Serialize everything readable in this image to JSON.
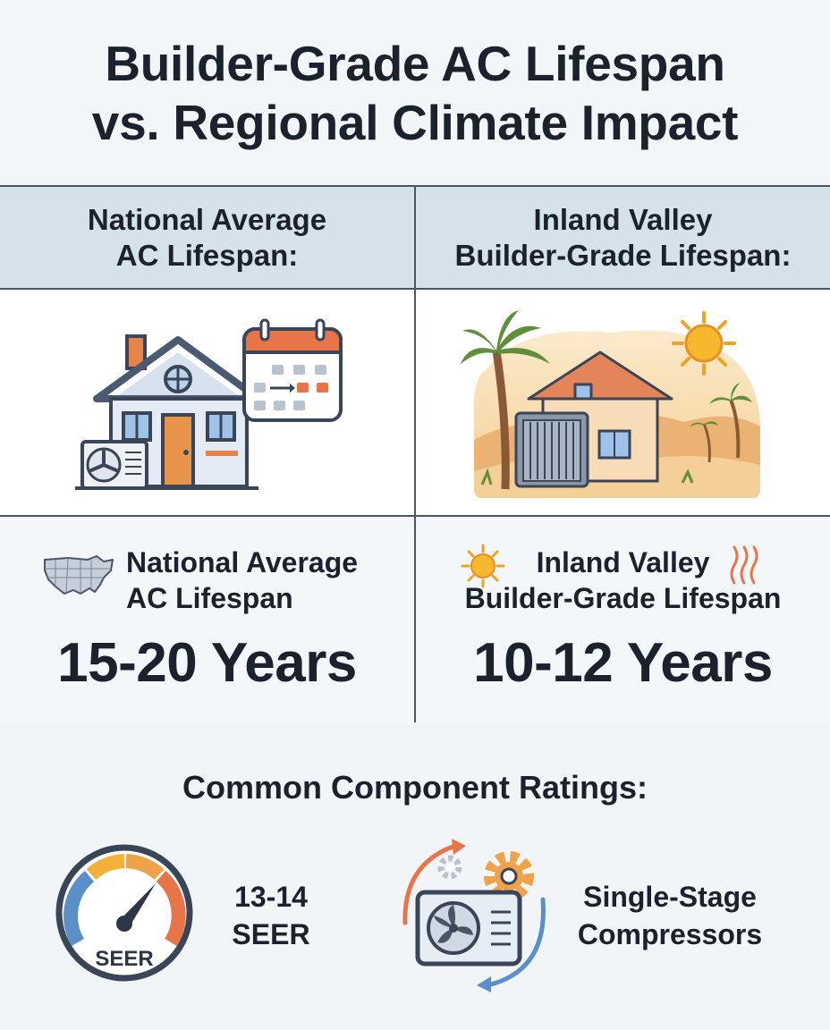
{
  "title": {
    "line1": "Builder-Grade AC Lifespan",
    "line2": "vs. Regional Climate Impact"
  },
  "national": {
    "header_line1": "National Average",
    "header_line2": "AC Lifespan:",
    "label_line1": "National Average",
    "label_line2": "AC Lifespan",
    "value": "15-20 Years",
    "illustration_icons": [
      "house-icon",
      "calendar-icon",
      "ac-unit-icon"
    ],
    "label_icon": "us-map-icon"
  },
  "inland": {
    "header_line1": "Inland Valley",
    "header_line2": "Builder-Grade Lifespan:",
    "label_line1": "Inland Valley",
    "label_line2": "Builder-Grade Lifespan",
    "value": "10-12 Years",
    "illustration_icons": [
      "desert-house-icon",
      "sun-icon",
      "palm-tree-icon",
      "ac-unit-icon"
    ],
    "label_icons": [
      "sun-icon",
      "heat-waves-icon"
    ]
  },
  "components": {
    "title": "Common Component Ratings:",
    "seer": {
      "gauge_label": "SEER",
      "line1": "13-14",
      "line2": "SEER",
      "icon": "seer-gauge-icon"
    },
    "compressor": {
      "line1": "Single-Stage",
      "line2": "Compressors",
      "icon": "compressor-cycle-icon"
    }
  },
  "colors": {
    "dark_text": "#1b222d",
    "header_band": "#d6e2ea",
    "divider": "#4a5668",
    "accent_orange": "#e8844a",
    "accent_blue": "#5b8fc7",
    "sun_yellow": "#f5b82e"
  }
}
